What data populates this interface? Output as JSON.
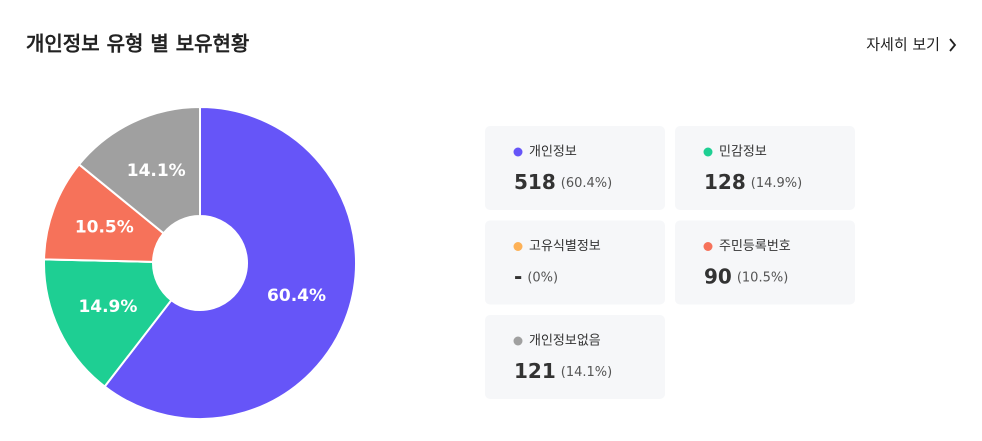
{
  "chart_data": {
    "type": "pie",
    "title": "개인정보 유형 별 보유현황",
    "link": "자세히 보기",
    "categories": [
      "개인정보",
      "민감정보",
      "고유식별정보",
      "주민등록번호",
      "개인정보없음"
    ],
    "values": [
      60.4,
      14.9,
      0,
      10.5,
      14.1
    ],
    "value_labels": [
      "60.4%",
      "14.9%",
      null,
      "10.5%",
      "14.1%"
    ],
    "colors": [
      "#6655f8",
      "#1ecf93",
      "#fdb157",
      "#f6725a",
      "#a0a0a0"
    ],
    "counts": [
      518,
      128,
      "-",
      90,
      121
    ],
    "count_percent_labels": [
      "(60.4%)",
      "(14.9%)",
      "(0%)",
      "(10.5%)",
      "(14.1%)"
    ]
  }
}
